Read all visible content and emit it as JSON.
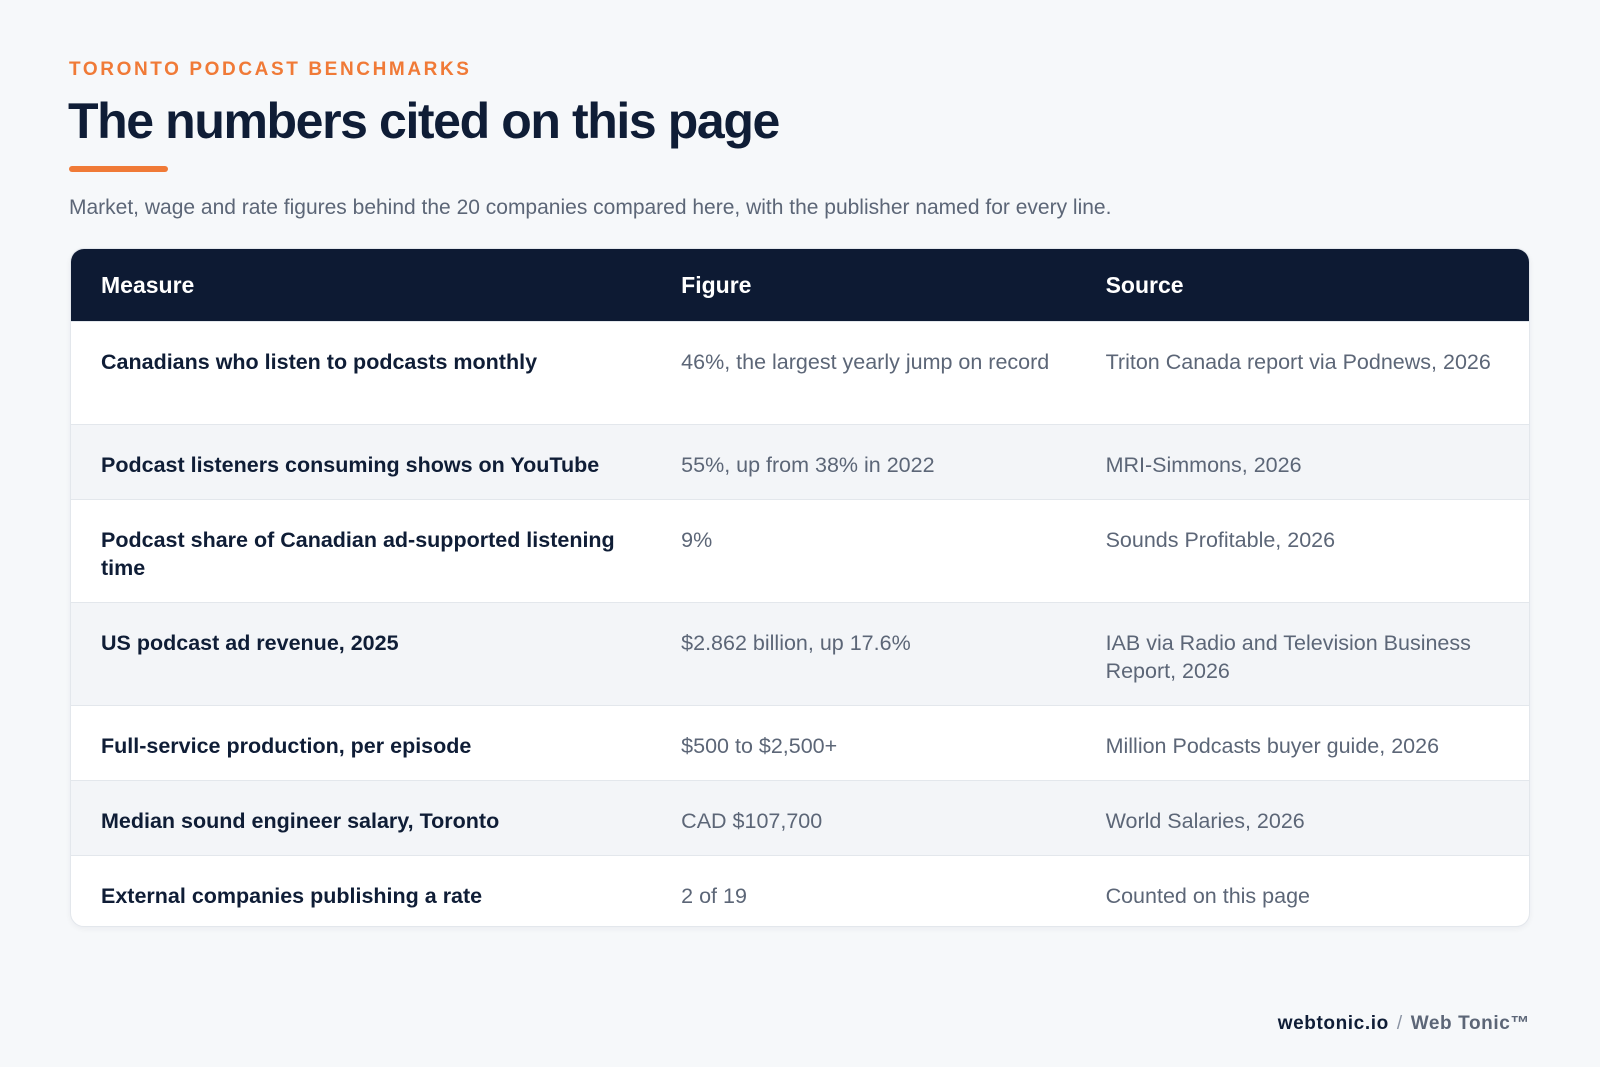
{
  "header": {
    "eyebrow": "TORONTO PODCAST BENCHMARKS",
    "title": "The numbers cited on this page",
    "subtitle": "Market, wage and rate figures behind the 20 companies compared here, with the publisher named for every line."
  },
  "table": {
    "columns": [
      "Measure",
      "Figure",
      "Source"
    ],
    "rows": [
      {
        "measure": "Canadians who listen to podcasts monthly",
        "figure": "46%, the largest yearly jump on record",
        "source": "Triton Canada report via Podnews, 2026"
      },
      {
        "measure": "Podcast listeners consuming shows on YouTube",
        "figure": "55%, up from 38% in 2022",
        "source": "MRI-Simmons, 2026"
      },
      {
        "measure": "Podcast share of Canadian ad-supported listening time",
        "figure": "9%",
        "source": "Sounds Profitable, 2026"
      },
      {
        "measure": "US podcast ad revenue, 2025",
        "figure": "$2.862 billion, up 17.6%",
        "source": "IAB via Radio and Television Business Report, 2026"
      },
      {
        "measure": "Full-service production, per episode",
        "figure": "$500 to $2,500+",
        "source": "Million Podcasts buyer guide, 2026"
      },
      {
        "measure": "Median sound engineer salary, Toronto",
        "figure": "CAD $107,700",
        "source": "World Salaries, 2026"
      },
      {
        "measure": "External companies publishing a rate",
        "figure": "2 of 19",
        "source": "Counted on this page"
      }
    ]
  },
  "footer": {
    "domain": "webtonic.io",
    "separator": "/",
    "brand": "Web Tonic™"
  },
  "colors": {
    "accent": "#f07a37",
    "header_bg": "#0d1a33",
    "page_bg": "#f6f8fa",
    "alt_row": "#f3f5f8"
  }
}
